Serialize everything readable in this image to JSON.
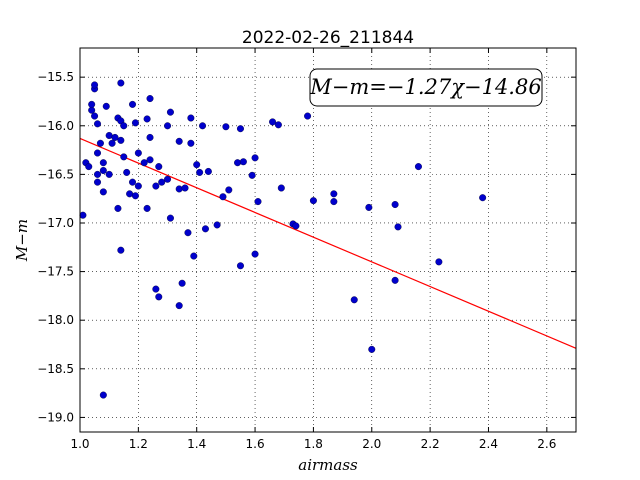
{
  "chart_data": {
    "type": "scatter",
    "title": "2022-02-26_211844",
    "xlabel": "airmass",
    "ylabel": "M−m",
    "xlim": [
      1.0,
      2.7
    ],
    "ylim": [
      -19.15,
      -15.2
    ],
    "xticks": [
      1.0,
      1.2,
      1.4,
      1.6,
      1.8,
      2.0,
      2.2,
      2.4,
      2.6
    ],
    "xtick_labels": [
      "1.0",
      "1.2",
      "1.4",
      "1.6",
      "1.8",
      "2.0",
      "2.2",
      "2.4",
      "2.6"
    ],
    "yticks": [
      -15.5,
      -16.0,
      -16.5,
      -17.0,
      -17.5,
      -18.0,
      -18.5,
      -19.0
    ],
    "ytick_labels": [
      "−15.5",
      "−16.0",
      "−16.5",
      "−17.0",
      "−17.5",
      "−18.0",
      "−18.5",
      "−19.0"
    ],
    "grid": true,
    "annotation": "M−m=−1.27χ−14.86",
    "fit": {
      "slope": -1.27,
      "intercept": -14.86,
      "color": "#ff0000"
    },
    "point_color": "#0000cc",
    "points": [
      [
        1.01,
        -16.92
      ],
      [
        1.02,
        -16.38
      ],
      [
        1.03,
        -16.42
      ],
      [
        1.04,
        -15.84
      ],
      [
        1.04,
        -15.78
      ],
      [
        1.05,
        -15.62
      ],
      [
        1.05,
        -15.58
      ],
      [
        1.05,
        -15.9
      ],
      [
        1.06,
        -15.98
      ],
      [
        1.06,
        -16.28
      ],
      [
        1.06,
        -16.5
      ],
      [
        1.06,
        -16.58
      ],
      [
        1.07,
        -16.18
      ],
      [
        1.08,
        -16.38
      ],
      [
        1.08,
        -16.46
      ],
      [
        1.08,
        -16.68
      ],
      [
        1.09,
        -15.8
      ],
      [
        1.1,
        -16.5
      ],
      [
        1.1,
        -16.1
      ],
      [
        1.11,
        -16.18
      ],
      [
        1.12,
        -16.12
      ],
      [
        1.13,
        -16.85
      ],
      [
        1.13,
        -15.92
      ],
      [
        1.14,
        -15.95
      ],
      [
        1.14,
        -15.56
      ],
      [
        1.14,
        -16.15
      ],
      [
        1.15,
        -16.32
      ],
      [
        1.15,
        -16.0
      ],
      [
        1.16,
        -16.48
      ],
      [
        1.17,
        -16.7
      ],
      [
        1.18,
        -15.78
      ],
      [
        1.18,
        -16.58
      ],
      [
        1.19,
        -15.97
      ],
      [
        1.19,
        -16.72
      ],
      [
        1.2,
        -16.28
      ],
      [
        1.2,
        -16.62
      ],
      [
        1.22,
        -16.38
      ],
      [
        1.23,
        -15.93
      ],
      [
        1.23,
        -16.85
      ],
      [
        1.24,
        -15.72
      ],
      [
        1.24,
        -16.35
      ],
      [
        1.24,
        -16.12
      ],
      [
        1.26,
        -16.62
      ],
      [
        1.27,
        -16.42
      ],
      [
        1.28,
        -16.58
      ],
      [
        1.3,
        -16.0
      ],
      [
        1.3,
        -16.55
      ],
      [
        1.31,
        -15.86
      ],
      [
        1.31,
        -16.95
      ],
      [
        1.34,
        -16.65
      ],
      [
        1.34,
        -16.16
      ],
      [
        1.36,
        -16.64
      ],
      [
        1.37,
        -17.1
      ],
      [
        1.38,
        -15.92
      ],
      [
        1.38,
        -16.18
      ],
      [
        1.39,
        -17.34
      ],
      [
        1.4,
        -16.4
      ],
      [
        1.41,
        -16.48
      ],
      [
        1.42,
        -16.0
      ],
      [
        1.43,
        -17.06
      ],
      [
        1.44,
        -16.47
      ],
      [
        1.47,
        -17.02
      ],
      [
        1.49,
        -16.73
      ],
      [
        1.5,
        -16.01
      ],
      [
        1.51,
        -16.66
      ],
      [
        1.54,
        -16.38
      ],
      [
        1.55,
        -16.03
      ],
      [
        1.56,
        -16.37
      ],
      [
        1.55,
        -17.44
      ],
      [
        1.59,
        -16.51
      ],
      [
        1.6,
        -16.33
      ],
      [
        1.61,
        -16.78
      ],
      [
        1.6,
        -17.32
      ],
      [
        1.66,
        -15.96
      ],
      [
        1.68,
        -15.99
      ],
      [
        1.69,
        -16.64
      ],
      [
        1.73,
        -17.01
      ],
      [
        1.74,
        -17.03
      ],
      [
        1.78,
        -15.9
      ],
      [
        1.8,
        -16.77
      ],
      [
        1.87,
        -16.7
      ],
      [
        1.87,
        -16.78
      ],
      [
        1.94,
        -17.79
      ],
      [
        1.99,
        -16.84
      ],
      [
        2.0,
        -18.3
      ],
      [
        2.08,
        -16.81
      ],
      [
        2.08,
        -17.59
      ],
      [
        2.09,
        -17.04
      ],
      [
        2.16,
        -16.42
      ],
      [
        2.23,
        -17.4
      ],
      [
        2.38,
        -16.74
      ],
      [
        1.14,
        -17.28
      ],
      [
        1.26,
        -17.68
      ],
      [
        1.27,
        -17.76
      ],
      [
        1.34,
        -17.85
      ],
      [
        1.35,
        -17.62
      ],
      [
        1.08,
        -18.77
      ]
    ]
  }
}
